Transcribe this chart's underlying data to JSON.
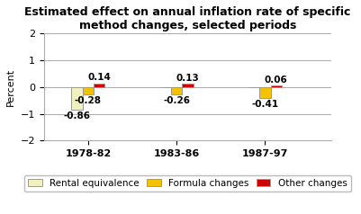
{
  "title": "Estimated effect on annual inflation rate of specific\nmethod changes, selected periods",
  "ylabel": "Percent",
  "groups": [
    "1978-82",
    "1983-86",
    "1987-97"
  ],
  "series_names": [
    "Rental equivalence",
    "Formula changes",
    "Other changes"
  ],
  "values": {
    "Rental equivalence": [
      -0.86,
      0.0,
      0.0
    ],
    "Formula changes": [
      -0.28,
      -0.26,
      -0.41
    ],
    "Other changes": [
      0.14,
      0.13,
      0.06
    ]
  },
  "colors": {
    "Rental equivalence": "#f0f0c0",
    "Formula changes": "#f5c200",
    "Other changes": "#cc0000"
  },
  "edgecolors": {
    "Rental equivalence": "#999999",
    "Formula changes": "#999999",
    "Other changes": "#999999"
  },
  "ylim": [
    -2,
    2
  ],
  "yticks": [
    -2,
    -1,
    0,
    1,
    2
  ],
  "bar_width": 0.25,
  "group_positions": [
    1.0,
    3.0,
    5.0
  ],
  "xlim": [
    0.0,
    6.5
  ],
  "label_fontsize": 7.5,
  "title_fontsize": 9.0,
  "tick_fontsize": 8,
  "axis_label_fontsize": 8,
  "legend_fontsize": 7.5,
  "background_color": "#ffffff",
  "grid_color": "#aaaaaa",
  "xtick_labels_x": [
    1.0,
    3.0,
    5.0
  ]
}
